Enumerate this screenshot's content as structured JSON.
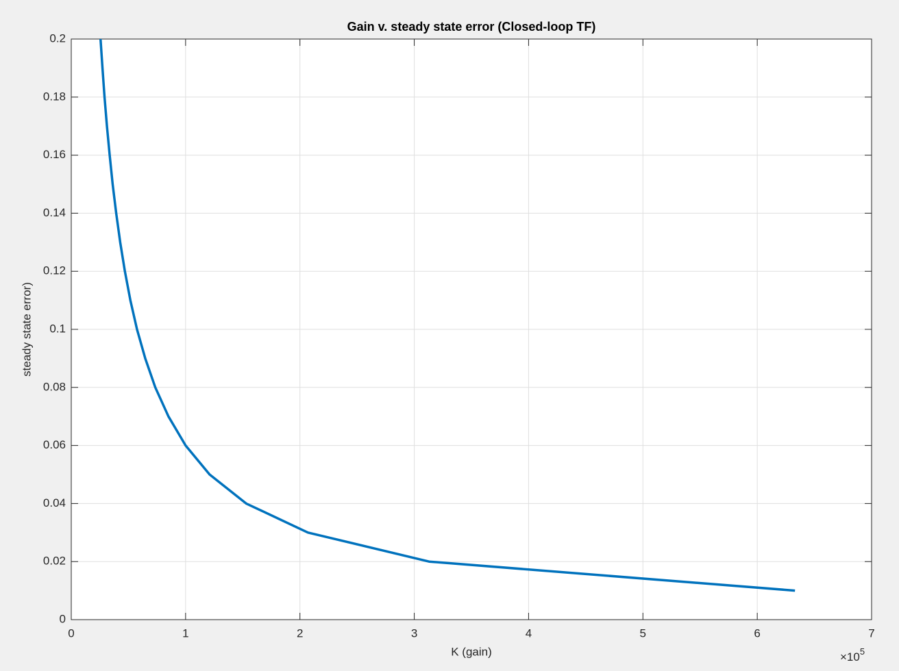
{
  "chart_data": {
    "type": "line",
    "title": "Gain v. steady state error (Closed-loop TF)",
    "xlabel": "K (gain)",
    "ylabel": "steady state error)",
    "x_multiplier": "×10",
    "x_multiplier_exponent": "5",
    "x": [
      633000,
      313000,
      207000,
      153000,
      121000,
      100000,
      85000,
      73500,
      64700,
      57500,
      51700,
      46900,
      42800,
      39300,
      36200,
      33600,
      31200,
      29100,
      27300,
      25600
    ],
    "values": [
      0.01,
      0.02,
      0.03,
      0.04,
      0.05,
      0.06,
      0.07,
      0.08,
      0.09,
      0.1,
      0.11,
      0.12,
      0.13,
      0.14,
      0.15,
      0.16,
      0.17,
      0.18,
      0.19,
      0.2
    ],
    "color": "#0072bd",
    "xlim": [
      0,
      700000
    ],
    "ylim": [
      0,
      0.2
    ],
    "xticks": [
      {
        "value": 0,
        "label": "0"
      },
      {
        "value": 100000,
        "label": "1"
      },
      {
        "value": 200000,
        "label": "2"
      },
      {
        "value": 300000,
        "label": "3"
      },
      {
        "value": 400000,
        "label": "4"
      },
      {
        "value": 500000,
        "label": "5"
      },
      {
        "value": 600000,
        "label": "6"
      },
      {
        "value": 700000,
        "label": "7"
      }
    ],
    "yticks": [
      0,
      0.02,
      0.04,
      0.06,
      0.08,
      0.1,
      0.12,
      0.14,
      0.16,
      0.18,
      0.2
    ],
    "grid": true
  }
}
